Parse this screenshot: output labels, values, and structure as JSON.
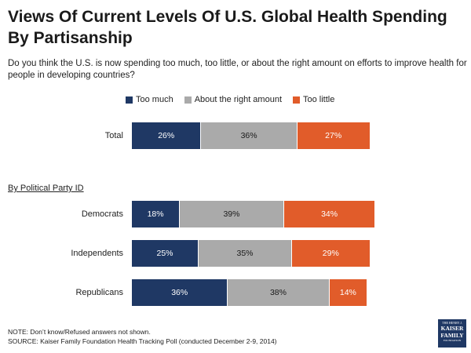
{
  "chart_data": {
    "type": "bar",
    "orientation": "horizontal",
    "stacked": true,
    "title": "Views Of Current Levels Of U.S. Global Health Spending By Partisanship",
    "question": "Do you think the U.S. is now spending too much, too little, or about the right amount on efforts to improve health for people in developing countries?",
    "legend": [
      "Too much",
      "About the right amount",
      "Too little"
    ],
    "colors": [
      "#1f3864",
      "#aaaaaa",
      "#e15c2a"
    ],
    "section_label": "By Political Party ID",
    "categories": [
      "Total",
      "Democrats",
      "Independents",
      "Republicans"
    ],
    "series": [
      {
        "name": "Too much",
        "values": [
          26,
          18,
          25,
          36
        ],
        "labels": [
          "26%",
          "18%",
          "25%",
          "36%"
        ]
      },
      {
        "name": "About the right amount",
        "values": [
          36,
          39,
          35,
          38
        ],
        "labels": [
          "36%",
          "39%",
          "35%",
          "38%"
        ]
      },
      {
        "name": "Too little",
        "values": [
          27,
          34,
          29,
          14
        ],
        "labels": [
          "27%",
          "34%",
          "29%",
          "14%"
        ]
      }
    ]
  },
  "footer": {
    "note": "NOTE: Don’t know/Refused answers not shown.",
    "source": "SOURCE: Kaiser Family Foundation Health Tracking Poll (conducted December 2-9, 2014)"
  },
  "logo": {
    "line1": "THE HENRY J.",
    "line2": "KAISER",
    "line3": "FAMILY",
    "line4": "FOUNDATION"
  }
}
